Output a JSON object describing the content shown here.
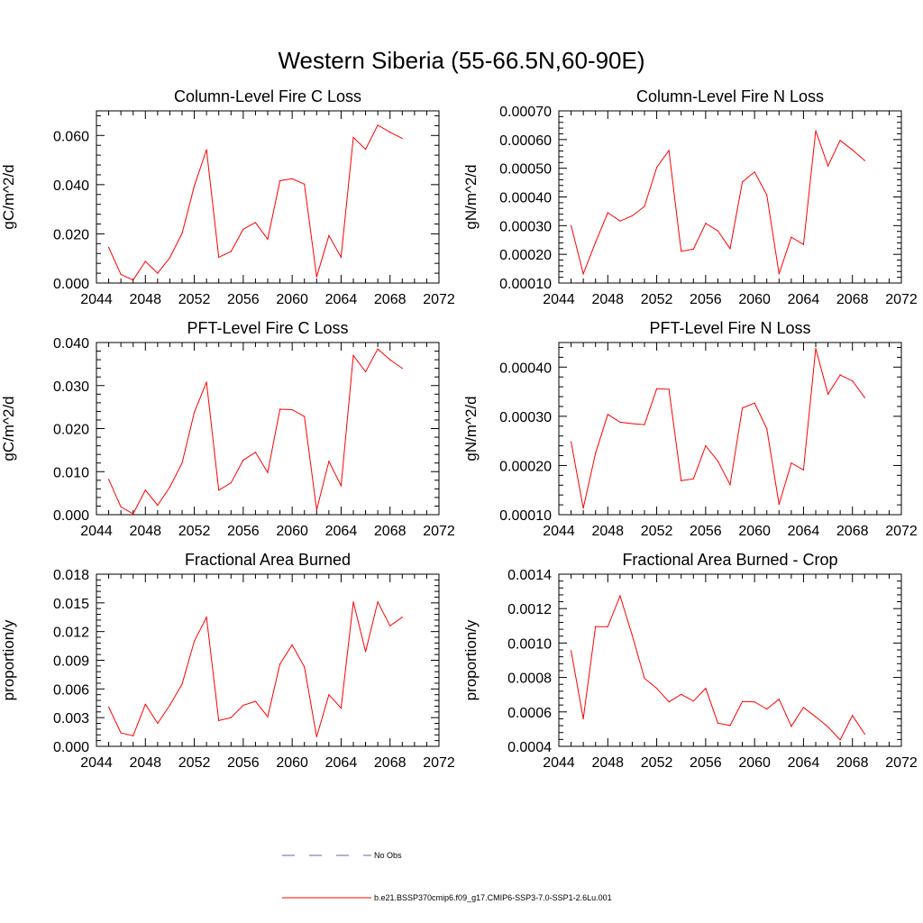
{
  "title": "Western Siberia (55-66.5N,60-90E)",
  "colors": {
    "series": "#ff0000",
    "obs": "#6666aa",
    "axes": "#000000"
  },
  "legend": {
    "items": [
      {
        "label": "No Obs",
        "style": "dashed",
        "color": "#6666aa"
      },
      {
        "label": "b.e21.BSSP370cmip6.f09_g17.CMIP6-SSP3-7.0-SSP1-2.6Lu.001",
        "style": "solid",
        "color": "#ff0000"
      }
    ]
  },
  "chart_data": [
    {
      "type": "line",
      "title": "Column-Level Fire C Loss",
      "ylabel": "gC/m^2/d",
      "xlim": [
        2044,
        2072
      ],
      "x_ticks": [
        "2044",
        "2048",
        "2052",
        "2056",
        "2060",
        "2064",
        "2068",
        "2072"
      ],
      "ylim": [
        0,
        0.07
      ],
      "y_ticks": [
        "0.000",
        "0.020",
        "0.040",
        "0.060"
      ],
      "x": [
        2045,
        2046,
        2047,
        2048,
        2049,
        2050,
        2051,
        2052,
        2053,
        2054,
        2055,
        2056,
        2057,
        2058,
        2059,
        2060,
        2061,
        2062,
        2063,
        2064,
        2065,
        2066,
        2067,
        2068,
        2069
      ],
      "values": [
        0.0145,
        0.0035,
        0.0012,
        0.0088,
        0.004,
        0.0103,
        0.0202,
        0.0395,
        0.0542,
        0.0105,
        0.0128,
        0.0219,
        0.0246,
        0.0178,
        0.0416,
        0.0424,
        0.0402,
        0.0025,
        0.0193,
        0.0105,
        0.0592,
        0.0544,
        0.0642,
        0.0613,
        0.0588
      ]
    },
    {
      "type": "line",
      "title": "Column-Level Fire N Loss",
      "ylabel": "gN/m^2/d",
      "xlim": [
        2044,
        2072
      ],
      "x_ticks": [
        "2044",
        "2048",
        "2052",
        "2056",
        "2060",
        "2064",
        "2068",
        "2072"
      ],
      "ylim": [
        0.0001,
        0.0007
      ],
      "y_ticks": [
        "0.00010",
        "0.00020",
        "0.00030",
        "0.00040",
        "0.00050",
        "0.00060",
        "0.00070"
      ],
      "x": [
        2045,
        2046,
        2047,
        2048,
        2049,
        2050,
        2051,
        2052,
        2053,
        2054,
        2055,
        2056,
        2057,
        2058,
        2059,
        2060,
        2061,
        2062,
        2063,
        2064,
        2065,
        2066,
        2067,
        2068,
        2069
      ],
      "values": [
        0.0003,
        0.000132,
        0.000242,
        0.000345,
        0.000316,
        0.000334,
        0.000367,
        0.000503,
        0.000562,
        0.000211,
        0.000218,
        0.000308,
        0.000282,
        0.00022,
        0.000452,
        0.000487,
        0.000407,
        0.000132,
        0.00026,
        0.000234,
        0.000631,
        0.000508,
        0.000597,
        0.000564,
        0.000527
      ]
    },
    {
      "type": "line",
      "title": "PFT-Level Fire C Loss",
      "ylabel": "gC/m^2/d",
      "xlim": [
        2044,
        2072
      ],
      "x_ticks": [
        "2044",
        "2048",
        "2052",
        "2056",
        "2060",
        "2064",
        "2068",
        "2072"
      ],
      "ylim": [
        0,
        0.04
      ],
      "y_ticks": [
        "0.000",
        "0.010",
        "0.020",
        "0.030",
        "0.040"
      ],
      "x": [
        2045,
        2046,
        2047,
        2048,
        2049,
        2050,
        2051,
        2052,
        2053,
        2054,
        2055,
        2056,
        2057,
        2058,
        2059,
        2060,
        2061,
        2062,
        2063,
        2064,
        2065,
        2066,
        2067,
        2068,
        2069
      ],
      "values": [
        0.0082,
        0.0018,
        0.0002,
        0.0057,
        0.0022,
        0.0064,
        0.012,
        0.0238,
        0.0308,
        0.0057,
        0.0074,
        0.0127,
        0.0145,
        0.0098,
        0.0245,
        0.0244,
        0.0228,
        0.0011,
        0.0124,
        0.0067,
        0.037,
        0.0332,
        0.0385,
        0.036,
        0.034
      ]
    },
    {
      "type": "line",
      "title": "PFT-Level Fire N Loss",
      "ylabel": "gN/m^2/d",
      "xlim": [
        2044,
        2072
      ],
      "x_ticks": [
        "2044",
        "2048",
        "2052",
        "2056",
        "2060",
        "2064",
        "2068",
        "2072"
      ],
      "ylim": [
        0.0001,
        0.00045
      ],
      "y_ticks": [
        "0.00010",
        "0.00020",
        "0.00030",
        "0.00040"
      ],
      "x": [
        2045,
        2046,
        2047,
        2048,
        2049,
        2050,
        2051,
        2052,
        2053,
        2054,
        2055,
        2056,
        2057,
        2058,
        2059,
        2060,
        2061,
        2062,
        2063,
        2064,
        2065,
        2066,
        2067,
        2068,
        2069
      ],
      "values": [
        0.000248,
        0.000113,
        0.000225,
        0.000304,
        0.000288,
        0.000285,
        0.000283,
        0.000356,
        0.000355,
        0.000169,
        0.000173,
        0.00024,
        0.000209,
        0.000161,
        0.000317,
        0.000327,
        0.000275,
        0.000121,
        0.000205,
        0.000191,
        0.000438,
        0.000345,
        0.000384,
        0.000372,
        0.000338
      ]
    },
    {
      "type": "line",
      "title": "Fractional Area Burned",
      "ylabel": "proportion/y",
      "xlim": [
        2044,
        2072
      ],
      "x_ticks": [
        "2044",
        "2048",
        "2052",
        "2056",
        "2060",
        "2064",
        "2068",
        "2072"
      ],
      "ylim": [
        0,
        0.018
      ],
      "y_ticks": [
        "0.000",
        "0.003",
        "0.006",
        "0.009",
        "0.012",
        "0.015",
        "0.018"
      ],
      "x": [
        2045,
        2046,
        2047,
        2048,
        2049,
        2050,
        2051,
        2052,
        2053,
        2054,
        2055,
        2056,
        2057,
        2058,
        2059,
        2060,
        2061,
        2062,
        2063,
        2064,
        2065,
        2066,
        2067,
        2068,
        2069
      ],
      "values": [
        0.0041,
        0.0014,
        0.0011,
        0.0044,
        0.0024,
        0.0043,
        0.0065,
        0.011,
        0.0135,
        0.0027,
        0.003,
        0.0043,
        0.0047,
        0.0031,
        0.0086,
        0.0106,
        0.0083,
        0.001,
        0.0054,
        0.004,
        0.0151,
        0.0099,
        0.0151,
        0.0126,
        0.0135
      ]
    },
    {
      "type": "line",
      "title": "Fractional Area Burned - Crop",
      "ylabel": "proportion/y",
      "xlim": [
        2044,
        2072
      ],
      "x_ticks": [
        "2044",
        "2048",
        "2052",
        "2056",
        "2060",
        "2064",
        "2068",
        "2072"
      ],
      "ylim": [
        0.0004,
        0.0014
      ],
      "y_ticks": [
        "0.0004",
        "0.0006",
        "0.0008",
        "0.0010",
        "0.0012",
        "0.0014"
      ],
      "x": [
        2045,
        2046,
        2047,
        2048,
        2049,
        2050,
        2051,
        2052,
        2053,
        2054,
        2055,
        2056,
        2057,
        2058,
        2059,
        2060,
        2061,
        2062,
        2063,
        2064,
        2065,
        2066,
        2067,
        2068,
        2069
      ],
      "values": [
        0.000955,
        0.00056,
        0.001095,
        0.001095,
        0.001274,
        0.001045,
        0.000795,
        0.000737,
        0.000658,
        0.000702,
        0.000663,
        0.000737,
        0.000535,
        0.000521,
        0.00066,
        0.000658,
        0.000616,
        0.000674,
        0.000516,
        0.000626,
        0.000571,
        0.000513,
        0.000437,
        0.000579,
        0.000471
      ]
    }
  ]
}
